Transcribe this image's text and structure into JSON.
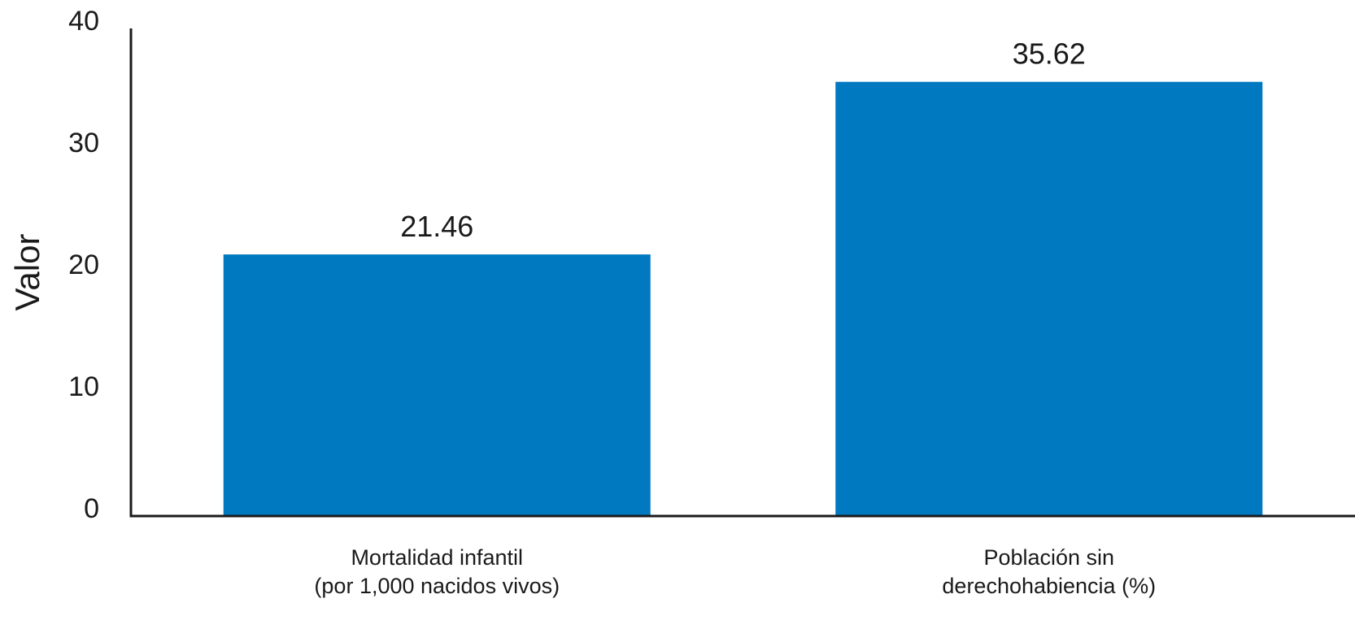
{
  "chart_data": {
    "type": "bar",
    "categories": [
      [
        "Mortalidad infantil",
        "(por 1,000 nacidos vivos)"
      ],
      [
        "Población sin",
        "derechohabiencia (%)"
      ]
    ],
    "values": [
      21.46,
      35.62
    ],
    "value_labels": [
      "21.46",
      "35.62"
    ],
    "title": "",
    "xlabel": "",
    "ylabel": "Valor",
    "ylim": [
      0,
      40
    ],
    "yticks": [
      0,
      10,
      20,
      30,
      40
    ],
    "grid": false,
    "legend": "none",
    "bar_color": "#0079c1",
    "axis_color": "#1a1a1a"
  }
}
